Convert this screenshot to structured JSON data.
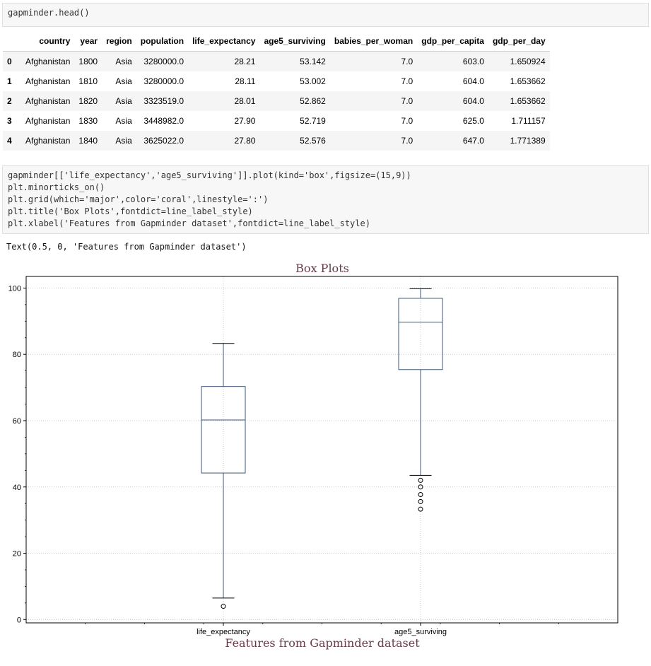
{
  "cell1": {
    "code": "gapminder.head()"
  },
  "dataframe": {
    "columns": [
      "country",
      "year",
      "region",
      "population",
      "life_expectancy",
      "age5_surviving",
      "babies_per_woman",
      "gdp_per_capita",
      "gdp_per_day"
    ],
    "rows": [
      {
        "index": "0",
        "cells": [
          "Afghanistan",
          "1800",
          "Asia",
          "3280000.0",
          "28.21",
          "53.142",
          "7.0",
          "603.0",
          "1.650924"
        ]
      },
      {
        "index": "1",
        "cells": [
          "Afghanistan",
          "1810",
          "Asia",
          "3280000.0",
          "28.11",
          "53.002",
          "7.0",
          "604.0",
          "1.653662"
        ]
      },
      {
        "index": "2",
        "cells": [
          "Afghanistan",
          "1820",
          "Asia",
          "3323519.0",
          "28.01",
          "52.862",
          "7.0",
          "604.0",
          "1.653662"
        ]
      },
      {
        "index": "3",
        "cells": [
          "Afghanistan",
          "1830",
          "Asia",
          "3448982.0",
          "27.90",
          "52.719",
          "7.0",
          "625.0",
          "1.711157"
        ]
      },
      {
        "index": "4",
        "cells": [
          "Afghanistan",
          "1840",
          "Asia",
          "3625022.0",
          "27.80",
          "52.576",
          "7.0",
          "647.0",
          "1.771389"
        ]
      }
    ]
  },
  "cell2": {
    "lines": [
      "gapminder[['life_expectancy','age5_surviving']].plot(kind='box',figsize=(15,9))",
      "plt.minorticks_on()",
      "plt.grid(which='major',color='coral',linestyle=':')",
      "plt.title('Box Plots',fontdict=line_label_style)",
      "plt.xlabel('Features from Gapminder dataset',fontdict=line_label_style)"
    ]
  },
  "output_text": "Text(0.5, 0, 'Features from Gapminder dataset')",
  "chart_data": {
    "type": "box",
    "title": "Box Plots",
    "xlabel": "Features from Gapminder dataset",
    "ylabel": "",
    "ylim": [
      -1,
      103.5
    ],
    "yticks": [
      0,
      20,
      40,
      60,
      80,
      100
    ],
    "grid": true,
    "categories": [
      "life_expectancy",
      "age5_surviving"
    ],
    "boxes": [
      {
        "name": "life_expectancy",
        "whisker_low": 6.5,
        "q1": 44.2,
        "median": 60.2,
        "q3": 70.3,
        "whisker_high": 83.3,
        "outliers": [
          4.0
        ]
      },
      {
        "name": "age5_surviving",
        "whisker_low": 43.5,
        "q1": 75.4,
        "median": 89.7,
        "q3": 96.9,
        "whisker_high": 99.8,
        "outliers": [
          42.0,
          40.0,
          37.7,
          35.6,
          33.3
        ]
      }
    ],
    "colors": {
      "box": "#3b5a78",
      "grid": "#bdbdbd",
      "title": "#6b3a4a",
      "axis": "#000000"
    }
  }
}
